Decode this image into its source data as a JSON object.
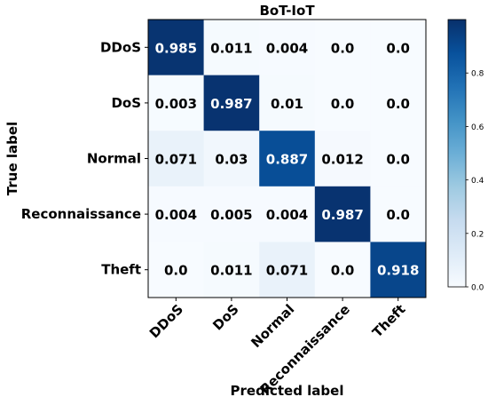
{
  "chart_data": {
    "type": "heatmap",
    "title": "BoT-IoT",
    "xlabel": "Predicted label",
    "ylabel": "True label",
    "x_categories": [
      "DDoS",
      "DoS",
      "Normal",
      "Reconnaissance",
      "Theft"
    ],
    "y_categories": [
      "DDoS",
      "DoS",
      "Normal",
      "Reconnaissance",
      "Theft"
    ],
    "values": [
      [
        0.985,
        0.011,
        0.004,
        0.0,
        0.0
      ],
      [
        0.003,
        0.987,
        0.01,
        0.0,
        0.0
      ],
      [
        0.071,
        0.03,
        0.887,
        0.012,
        0.0
      ],
      [
        0.004,
        0.005,
        0.004,
        0.987,
        0.0
      ],
      [
        0.0,
        0.011,
        0.071,
        0.0,
        0.918
      ]
    ],
    "cell_labels": [
      [
        "0.985",
        "0.011",
        "0.004",
        "0.0",
        "0.0"
      ],
      [
        "0.003",
        "0.987",
        "0.01",
        "0.0",
        "0.0"
      ],
      [
        "0.071",
        "0.03",
        "0.887",
        "0.012",
        "0.0"
      ],
      [
        "0.004",
        "0.005",
        "0.004",
        "0.987",
        "0.0"
      ],
      [
        "0.0",
        "0.011",
        "0.071",
        "0.0",
        "0.918"
      ]
    ],
    "colormap": "Blues",
    "colorbar": {
      "range": [
        0.0,
        1.0
      ],
      "ticks": [
        0.0,
        0.2,
        0.4,
        0.6,
        0.8
      ],
      "tick_labels": [
        "0.0",
        "0.2",
        "0.4",
        "0.6",
        "0.8"
      ]
    },
    "colors": {
      "low": "#f7fbff",
      "high": "#08306b",
      "text_on_dark": "#ffffff",
      "text_on_light": "#000000"
    }
  }
}
